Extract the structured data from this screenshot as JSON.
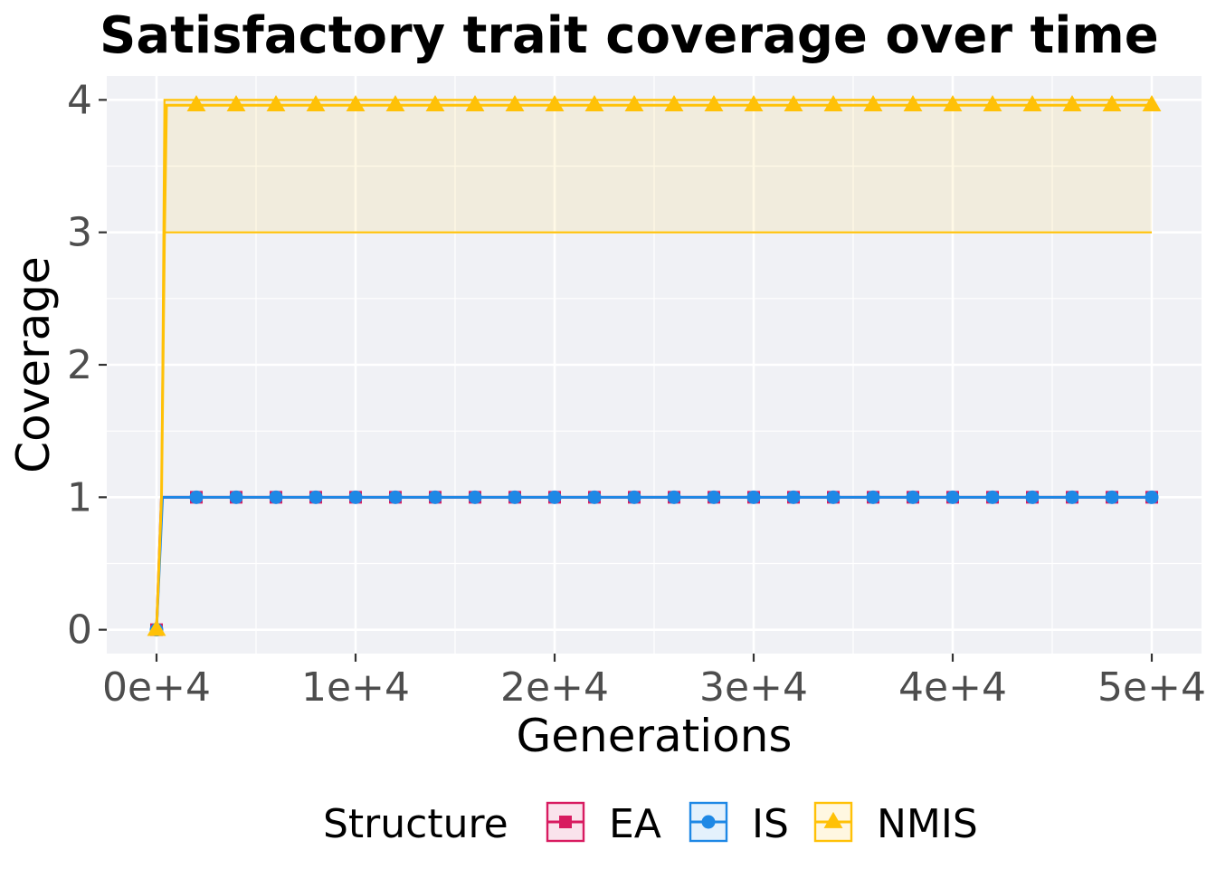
{
  "chart_data": {
    "type": "line",
    "title": "Satisfactory trait coverage over time",
    "xlabel": "Generations",
    "ylabel": "Coverage",
    "xlim": [
      -2500,
      52500
    ],
    "ylim": [
      -0.18,
      4.18
    ],
    "x_ticks": [
      0,
      10000,
      20000,
      30000,
      40000,
      50000
    ],
    "x_tick_labels": [
      "0e+4",
      "1e+4",
      "2e+4",
      "3e+4",
      "4e+4",
      "5e+4"
    ],
    "y_ticks": [
      0,
      1,
      2,
      3,
      4
    ],
    "y_tick_labels": [
      "0",
      "1",
      "2",
      "3",
      "4"
    ],
    "grid": true,
    "legend": {
      "title": "Structure",
      "placement": "bottom"
    },
    "series": [
      {
        "name": "EA",
        "color": "#d81b60",
        "marker": "square",
        "line": [
          [
            0,
            0
          ],
          [
            250,
            1
          ],
          [
            50000,
            1
          ]
        ],
        "band": [
          [
            0,
            0,
            0
          ],
          [
            250,
            1,
            1
          ],
          [
            50000,
            1,
            1
          ]
        ],
        "points": [
          [
            0,
            0
          ],
          [
            2000,
            1
          ],
          [
            4000,
            1
          ],
          [
            6000,
            1
          ],
          [
            8000,
            1
          ],
          [
            10000,
            1
          ],
          [
            12000,
            1
          ],
          [
            14000,
            1
          ],
          [
            16000,
            1
          ],
          [
            18000,
            1
          ],
          [
            20000,
            1
          ],
          [
            22000,
            1
          ],
          [
            24000,
            1
          ],
          [
            26000,
            1
          ],
          [
            28000,
            1
          ],
          [
            30000,
            1
          ],
          [
            32000,
            1
          ],
          [
            34000,
            1
          ],
          [
            36000,
            1
          ],
          [
            38000,
            1
          ],
          [
            40000,
            1
          ],
          [
            42000,
            1
          ],
          [
            44000,
            1
          ],
          [
            46000,
            1
          ],
          [
            48000,
            1
          ],
          [
            50000,
            1
          ]
        ]
      },
      {
        "name": "IS",
        "color": "#1e88e5",
        "marker": "circle",
        "line": [
          [
            0,
            0
          ],
          [
            300,
            1
          ],
          [
            50000,
            1
          ]
        ],
        "band": [
          [
            0,
            0,
            0
          ],
          [
            300,
            1,
            1
          ],
          [
            50000,
            1,
            1
          ]
        ],
        "points": [
          [
            0,
            0
          ],
          [
            2000,
            1
          ],
          [
            4000,
            1
          ],
          [
            6000,
            1
          ],
          [
            8000,
            1
          ],
          [
            10000,
            1
          ],
          [
            12000,
            1
          ],
          [
            14000,
            1
          ],
          [
            16000,
            1
          ],
          [
            18000,
            1
          ],
          [
            20000,
            1
          ],
          [
            22000,
            1
          ],
          [
            24000,
            1
          ],
          [
            26000,
            1
          ],
          [
            28000,
            1
          ],
          [
            30000,
            1
          ],
          [
            32000,
            1
          ],
          [
            34000,
            1
          ],
          [
            36000,
            1
          ],
          [
            38000,
            1
          ],
          [
            40000,
            1
          ],
          [
            42000,
            1
          ],
          [
            44000,
            1
          ],
          [
            46000,
            1
          ],
          [
            48000,
            1
          ],
          [
            50000,
            1
          ]
        ]
      },
      {
        "name": "NMIS",
        "color": "#ffc107",
        "marker": "triangle",
        "line": [
          [
            0,
            0
          ],
          [
            250,
            1
          ],
          [
            400,
            3
          ],
          [
            500,
            3.96
          ],
          [
            50000,
            3.96
          ]
        ],
        "band": [
          [
            0,
            0,
            0
          ],
          [
            250,
            1,
            1
          ],
          [
            400,
            3,
            4
          ],
          [
            50000,
            3,
            4
          ]
        ],
        "points": [
          [
            0,
            0
          ],
          [
            2000,
            3.96
          ],
          [
            4000,
            3.96
          ],
          [
            6000,
            3.96
          ],
          [
            8000,
            3.96
          ],
          [
            10000,
            3.96
          ],
          [
            12000,
            3.96
          ],
          [
            14000,
            3.96
          ],
          [
            16000,
            3.96
          ],
          [
            18000,
            3.96
          ],
          [
            20000,
            3.96
          ],
          [
            22000,
            3.96
          ],
          [
            24000,
            3.96
          ],
          [
            26000,
            3.96
          ],
          [
            28000,
            3.96
          ],
          [
            30000,
            3.96
          ],
          [
            32000,
            3.96
          ],
          [
            34000,
            3.96
          ],
          [
            36000,
            3.96
          ],
          [
            38000,
            3.96
          ],
          [
            40000,
            3.96
          ],
          [
            42000,
            3.96
          ],
          [
            44000,
            3.96
          ],
          [
            46000,
            3.96
          ],
          [
            48000,
            3.96
          ],
          [
            50000,
            3.96
          ]
        ]
      }
    ],
    "panel_background": "#f0f1f5",
    "grid_color": "#ffffff"
  }
}
